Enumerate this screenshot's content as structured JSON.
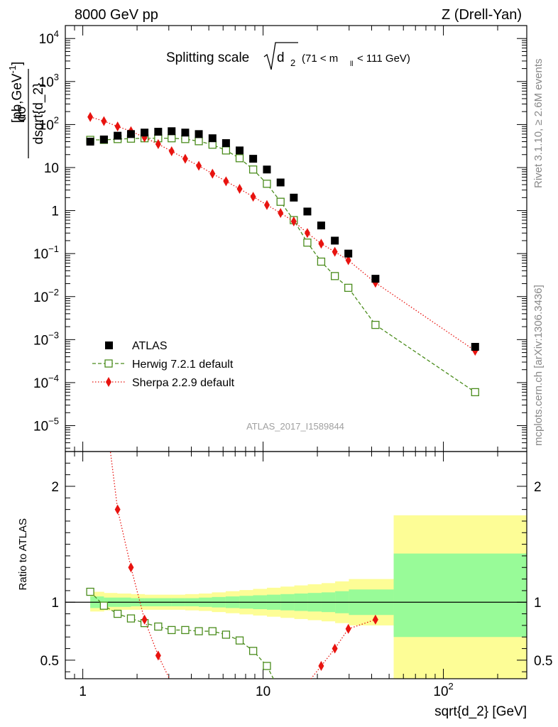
{
  "header": {
    "left": "8000 GeV pp",
    "right": "Z (Drell-Yan)"
  },
  "side_texts": {
    "rivet": "Rivet 3.1.10, ≥ 2.6M events",
    "mcplots": "mcplots.cern.ch [arXiv:1306.3436]"
  },
  "chart_data": {
    "type": "scatter",
    "title": {
      "main": "Splitting scale",
      "root_symbol": "d",
      "root_subscript": "2",
      "cut_prefix": "(71 < m",
      "cut_subscript": "ll",
      "cut_suffix": " < 111 GeV)"
    },
    "xlabel": "sqrt{d_2} [GeV]",
    "ylabel": {
      "numerator": "dσ",
      "denominator": "dsqrt{d_2}",
      "unit": "[pb,GeV",
      "unit_sup": "-1",
      "unit_end": "]"
    },
    "ratio_ylabel": "Ratio to ATLAS",
    "analysis_label": "ATLAS_2017_I1589844",
    "x_scale": "log",
    "xlim": [
      0.8,
      290
    ],
    "x_ticks": [
      {
        "value": 1,
        "label": "1",
        "sup": ""
      },
      {
        "value": 10,
        "label": "10",
        "sup": ""
      },
      {
        "value": 100,
        "label": "10",
        "sup": "2"
      }
    ],
    "top_panel": {
      "y_scale": "log",
      "ylim": [
        2.5e-06,
        20000
      ],
      "y_ticks": [
        {
          "value": 10000,
          "label": "10",
          "sup": "4"
        },
        {
          "value": 1000,
          "label": "10",
          "sup": "3"
        },
        {
          "value": 100,
          "label": "10",
          "sup": "2"
        },
        {
          "value": 10,
          "label": "10",
          "sup": ""
        },
        {
          "value": 1,
          "label": "1",
          "sup": ""
        },
        {
          "value": 0.1,
          "label": "10",
          "sup": "−1"
        },
        {
          "value": 0.01,
          "label": "10",
          "sup": "−2"
        },
        {
          "value": 0.001,
          "label": "10",
          "sup": "−3"
        },
        {
          "value": 0.0001,
          "label": "10",
          "sup": "−4"
        },
        {
          "value": 1e-05,
          "label": "10",
          "sup": "−5"
        }
      ]
    },
    "ratio_panel": {
      "y_scale": "linear",
      "ylim": [
        0.34,
        2.3
      ],
      "y_ticks": [
        {
          "value": 2,
          "label": "2"
        },
        {
          "value": 1,
          "label": "1"
        },
        {
          "value": 0.5,
          "label": "0.5"
        }
      ],
      "band_bins": [
        {
          "x_lo": 1.1,
          "x_hi": 1.31,
          "inner": [
            0.95,
            1.05
          ],
          "outer": [
            0.92,
            1.09
          ]
        },
        {
          "x_lo": 1.31,
          "x_hi": 1.55,
          "inner": [
            0.96,
            1.04
          ],
          "outer": [
            0.93,
            1.08
          ]
        },
        {
          "x_lo": 1.55,
          "x_hi": 1.85,
          "inner": [
            0.96,
            1.04
          ],
          "outer": [
            0.935,
            1.075
          ]
        },
        {
          "x_lo": 1.85,
          "x_hi": 2.2,
          "inner": [
            0.965,
            1.035
          ],
          "outer": [
            0.935,
            1.07
          ]
        },
        {
          "x_lo": 2.2,
          "x_hi": 2.6,
          "inner": [
            0.965,
            1.035
          ],
          "outer": [
            0.935,
            1.065
          ]
        },
        {
          "x_lo": 2.6,
          "x_hi": 3.1,
          "inner": [
            0.965,
            1.035
          ],
          "outer": [
            0.935,
            1.065
          ]
        },
        {
          "x_lo": 3.1,
          "x_hi": 3.7,
          "inner": [
            0.965,
            1.035
          ],
          "outer": [
            0.935,
            1.065
          ]
        },
        {
          "x_lo": 3.7,
          "x_hi": 4.4,
          "inner": [
            0.965,
            1.035
          ],
          "outer": [
            0.93,
            1.07
          ]
        },
        {
          "x_lo": 4.4,
          "x_hi": 5.2,
          "inner": [
            0.96,
            1.04
          ],
          "outer": [
            0.925,
            1.075
          ]
        },
        {
          "x_lo": 5.2,
          "x_hi": 6.2,
          "inner": [
            0.955,
            1.045
          ],
          "outer": [
            0.915,
            1.085
          ]
        },
        {
          "x_lo": 6.2,
          "x_hi": 7.4,
          "inner": [
            0.95,
            1.05
          ],
          "outer": [
            0.905,
            1.095
          ]
        },
        {
          "x_lo": 7.4,
          "x_hi": 8.8,
          "inner": [
            0.945,
            1.055
          ],
          "outer": [
            0.895,
            1.105
          ]
        },
        {
          "x_lo": 8.8,
          "x_hi": 10.5,
          "inner": [
            0.94,
            1.06
          ],
          "outer": [
            0.885,
            1.115
          ]
        },
        {
          "x_lo": 10.5,
          "x_hi": 12.5,
          "inner": [
            0.935,
            1.065
          ],
          "outer": [
            0.875,
            1.125
          ]
        },
        {
          "x_lo": 12.5,
          "x_hi": 14.9,
          "inner": [
            0.93,
            1.07
          ],
          "outer": [
            0.865,
            1.135
          ]
        },
        {
          "x_lo": 14.9,
          "x_hi": 17.7,
          "inner": [
            0.925,
            1.075
          ],
          "outer": [
            0.855,
            1.145
          ]
        },
        {
          "x_lo": 17.7,
          "x_hi": 21.1,
          "inner": [
            0.92,
            1.08
          ],
          "outer": [
            0.845,
            1.155
          ]
        },
        {
          "x_lo": 21.1,
          "x_hi": 25.1,
          "inner": [
            0.915,
            1.085
          ],
          "outer": [
            0.835,
            1.165
          ]
        },
        {
          "x_lo": 25.1,
          "x_hi": 29.9,
          "inner": [
            0.905,
            1.095
          ],
          "outer": [
            0.82,
            1.18
          ]
        },
        {
          "x_lo": 29.9,
          "x_hi": 53,
          "inner": [
            0.89,
            1.11
          ],
          "outer": [
            0.8,
            1.2
          ]
        },
        {
          "x_lo": 53,
          "x_hi": 290,
          "inner": [
            0.7,
            1.42
          ],
          "outer": [
            0.34,
            1.75
          ]
        }
      ]
    },
    "series": [
      {
        "name": "ATLAS",
        "color": "#000000",
        "marker": "square-filled",
        "line": "none",
        "x": [
          1.1,
          1.31,
          1.56,
          1.85,
          2.2,
          2.62,
          3.11,
          3.7,
          4.4,
          5.24,
          6.23,
          7.41,
          8.81,
          10.5,
          12.5,
          14.8,
          17.6,
          21,
          25,
          29.7,
          42,
          150
        ],
        "y": [
          40,
          45,
          55,
          60,
          65,
          68,
          70,
          65,
          60,
          48,
          37,
          25,
          16,
          9,
          4.5,
          2,
          0.95,
          0.45,
          0.2,
          0.1,
          0.026,
          0.00068
        ],
        "ratio": []
      },
      {
        "name": "Herwig 7.2.1 default",
        "color": "#4a8c1c",
        "marker": "square-open",
        "line": "dashed",
        "x": [
          1.1,
          1.31,
          1.56,
          1.85,
          2.2,
          2.62,
          3.11,
          3.7,
          4.4,
          5.24,
          6.23,
          7.41,
          8.81,
          10.5,
          12.5,
          14.8,
          17.6,
          21,
          25,
          29.7,
          42,
          150
        ],
        "y": [
          44,
          44,
          46,
          47,
          48,
          48,
          48,
          46,
          41,
          34,
          25,
          16.5,
          9,
          4.2,
          1.6,
          0.6,
          0.18,
          0.065,
          0.03,
          0.016,
          0.0022,
          6e-05
        ],
        "ratio": [
          1.09,
          0.97,
          0.9,
          0.86,
          0.82,
          0.79,
          0.76,
          0.76,
          0.75,
          0.75,
          0.72,
          0.67,
          0.58,
          0.45
        ]
      },
      {
        "name": "Sherpa 2.2.9 default",
        "color": "#e8130f",
        "marker": "diamond-filled",
        "line": "dotted",
        "x": [
          1.1,
          1.31,
          1.56,
          1.85,
          2.2,
          2.62,
          3.11,
          3.7,
          4.4,
          5.24,
          6.23,
          7.41,
          8.81,
          10.5,
          12.5,
          14.8,
          17.6,
          21,
          25,
          29.7,
          42,
          150
        ],
        "y": [
          150,
          120,
          90,
          70,
          50,
          35,
          24,
          16,
          11,
          7.2,
          4.8,
          3.2,
          2.1,
          1.35,
          0.88,
          0.56,
          0.3,
          0.17,
          0.11,
          0.07,
          0.021,
          0.00055
        ],
        "ratio": [
          null,
          null,
          1.8,
          1.3,
          0.85,
          0.54,
          0.3,
          0.1,
          null,
          null,
          null,
          null,
          null,
          null,
          null,
          null,
          0.3,
          0.45,
          0.6,
          0.77,
          0.85,
          null
        ]
      }
    ],
    "legend": {
      "position": "lower-left",
      "entries": [
        "ATLAS",
        "Herwig 7.2.1 default",
        "Sherpa 2.2.9 default"
      ]
    },
    "ratio_reference_line": 1,
    "band_colors": {
      "inner": "#98fb98",
      "outer": "#fdfd96"
    }
  }
}
